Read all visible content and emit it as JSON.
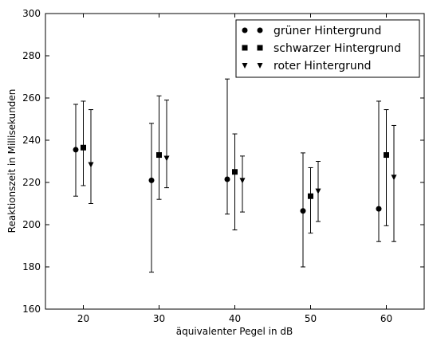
{
  "chart_data": {
    "type": "scatter",
    "title": "",
    "xlabel": "äquivalenter Pegel in dB",
    "ylabel": "Reaktionszeit in Millisekunden",
    "xlim": [
      15,
      65
    ],
    "ylim": [
      160,
      300
    ],
    "xticks": [
      20,
      30,
      40,
      50,
      60
    ],
    "yticks": [
      160,
      180,
      200,
      220,
      240,
      260,
      280,
      300
    ],
    "grid": false,
    "legend_position": "top-right",
    "series": [
      {
        "name": "grüner Hintergrund",
        "marker": "circle",
        "color": "#000000",
        "points": [
          {
            "x": 19,
            "y": 235.5,
            "ylow": 213.5,
            "yhigh": 257
          },
          {
            "x": 29,
            "y": 221,
            "ylow": 177.5,
            "yhigh": 248
          },
          {
            "x": 39,
            "y": 221.5,
            "ylow": 205,
            "yhigh": 269
          },
          {
            "x": 49,
            "y": 206.5,
            "ylow": 180,
            "yhigh": 234
          },
          {
            "x": 59,
            "y": 207.5,
            "ylow": 192,
            "yhigh": 258.5
          }
        ]
      },
      {
        "name": "schwarzer Hintergrund",
        "marker": "square",
        "color": "#000000",
        "points": [
          {
            "x": 20,
            "y": 236.5,
            "ylow": 218.5,
            "yhigh": 258.5
          },
          {
            "x": 30,
            "y": 233,
            "ylow": 212,
            "yhigh": 261
          },
          {
            "x": 40,
            "y": 225,
            "ylow": 197.5,
            "yhigh": 243
          },
          {
            "x": 50,
            "y": 213.5,
            "ylow": 196,
            "yhigh": 227
          },
          {
            "x": 60,
            "y": 233,
            "ylow": 199.5,
            "yhigh": 254.5
          }
        ]
      },
      {
        "name": "roter Hintergrund",
        "marker": "triangle-down",
        "color": "#000000",
        "points": [
          {
            "x": 21,
            "y": 228.5,
            "ylow": 210,
            "yhigh": 254.5
          },
          {
            "x": 31,
            "y": 231.5,
            "ylow": 217.5,
            "yhigh": 259
          },
          {
            "x": 41,
            "y": 221,
            "ylow": 206,
            "yhigh": 232.5
          },
          {
            "x": 51,
            "y": 216,
            "ylow": 201.5,
            "yhigh": 230
          },
          {
            "x": 61,
            "y": 222.5,
            "ylow": 192,
            "yhigh": 247
          }
        ]
      }
    ]
  }
}
